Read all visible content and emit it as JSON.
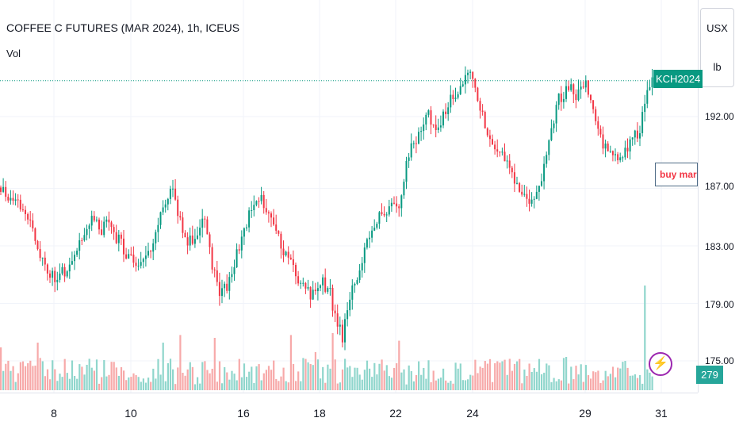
{
  "header": {
    "title": "COFFEE C FUTURES (MAR 2024), 1h, ICEUS",
    "volume_label": "Vol"
  },
  "price_scale": {
    "currency": "USX",
    "unit": "lb",
    "ticks": [
      "192.00",
      "187.00",
      "183.00",
      "179.00",
      "175.00"
    ]
  },
  "badges": {
    "ticker": "KCH2024",
    "volume": "279"
  },
  "alert": {
    "text": "buy marc"
  },
  "time_axis": {
    "labels": [
      "8",
      "10",
      "16",
      "18",
      "22",
      "24",
      "29",
      "31"
    ]
  },
  "icons": {
    "lightning": "lightning-bolt-icon"
  },
  "colors": {
    "up": "#089981",
    "down": "#f23645",
    "up_volume": "#8fd6cc",
    "down_volume": "#f7a9a9",
    "grid": "#f0f3fa",
    "last_price_line": "#089981"
  },
  "chart_data": {
    "type": "candlestick",
    "title": "COFFEE C FUTURES (MAR 2024), 1h, ICEUS",
    "symbol": "KCH2024",
    "interval": "1h",
    "unit": "USX / lb",
    "ylim": [
      172.9,
      198.9
    ],
    "y_ticks": [
      192.0,
      187.0,
      183.0,
      179.0,
      175.0
    ],
    "x_labels": [
      "8",
      "10",
      "16",
      "18",
      "22",
      "24",
      "29",
      "31"
    ],
    "grid": true,
    "last_price": 194.5,
    "last_volume": 279,
    "anchors": [
      [
        0,
        186.9
      ],
      [
        6,
        186.0
      ],
      [
        10,
        185.4
      ],
      [
        14,
        183.4
      ],
      [
        18,
        181.5
      ],
      [
        22,
        180.9
      ],
      [
        26,
        181.3
      ],
      [
        30,
        182.4
      ],
      [
        34,
        184.2
      ],
      [
        38,
        185.0
      ],
      [
        40,
        183.8
      ],
      [
        44,
        184.7
      ],
      [
        47,
        183.6
      ],
      [
        50,
        182.8
      ],
      [
        54,
        181.7
      ],
      [
        58,
        182.3
      ],
      [
        62,
        183.3
      ],
      [
        66,
        185.6
      ],
      [
        70,
        186.9
      ],
      [
        72,
        185.4
      ],
      [
        75,
        183.2
      ],
      [
        79,
        183.5
      ],
      [
        83,
        185.0
      ],
      [
        86,
        181.5
      ],
      [
        89,
        179.8
      ],
      [
        92,
        180.2
      ],
      [
        95,
        181.7
      ],
      [
        98,
        183.7
      ],
      [
        102,
        185.6
      ],
      [
        106,
        186.1
      ],
      [
        110,
        185.1
      ],
      [
        114,
        183.1
      ],
      [
        118,
        181.8
      ],
      [
        122,
        180.3
      ],
      [
        126,
        179.5
      ],
      [
        130,
        180.6
      ],
      [
        134,
        179.8
      ],
      [
        136,
        178.0
      ],
      [
        139,
        176.6
      ],
      [
        142,
        179.2
      ],
      [
        146,
        181.6
      ],
      [
        150,
        183.5
      ],
      [
        154,
        185.1
      ],
      [
        158,
        185.6
      ],
      [
        162,
        185.9
      ],
      [
        166,
        189.6
      ],
      [
        170,
        190.6
      ],
      [
        174,
        192.1
      ],
      [
        178,
        191.0
      ],
      [
        182,
        193.0
      ],
      [
        186,
        194.0
      ],
      [
        189,
        194.8
      ],
      [
        191,
        195.2
      ],
      [
        194,
        193.2
      ],
      [
        198,
        191.1
      ],
      [
        202,
        189.6
      ],
      [
        206,
        188.8
      ],
      [
        210,
        187.4
      ],
      [
        214,
        186.2
      ],
      [
        217,
        186.5
      ],
      [
        220,
        187.8
      ],
      [
        223,
        190.5
      ],
      [
        227,
        193.2
      ],
      [
        231,
        194.1
      ],
      [
        234,
        193.5
      ],
      [
        238,
        194.4
      ],
      [
        241,
        192.5
      ],
      [
        245,
        190.2
      ],
      [
        249,
        189.1
      ],
      [
        253,
        189.4
      ],
      [
        257,
        190.4
      ],
      [
        260,
        191.0
      ],
      [
        263,
        194.2
      ],
      [
        265,
        194.5
      ]
    ],
    "volume_spikes": [
      [
        0,
        45
      ],
      [
        15,
        50
      ],
      [
        36,
        33
      ],
      [
        66,
        50
      ],
      [
        73,
        58
      ],
      [
        87,
        55
      ],
      [
        118,
        58
      ],
      [
        128,
        40
      ],
      [
        135,
        60
      ],
      [
        162,
        52
      ],
      [
        205,
        32
      ],
      [
        230,
        35
      ],
      [
        262,
        110
      ]
    ]
  }
}
